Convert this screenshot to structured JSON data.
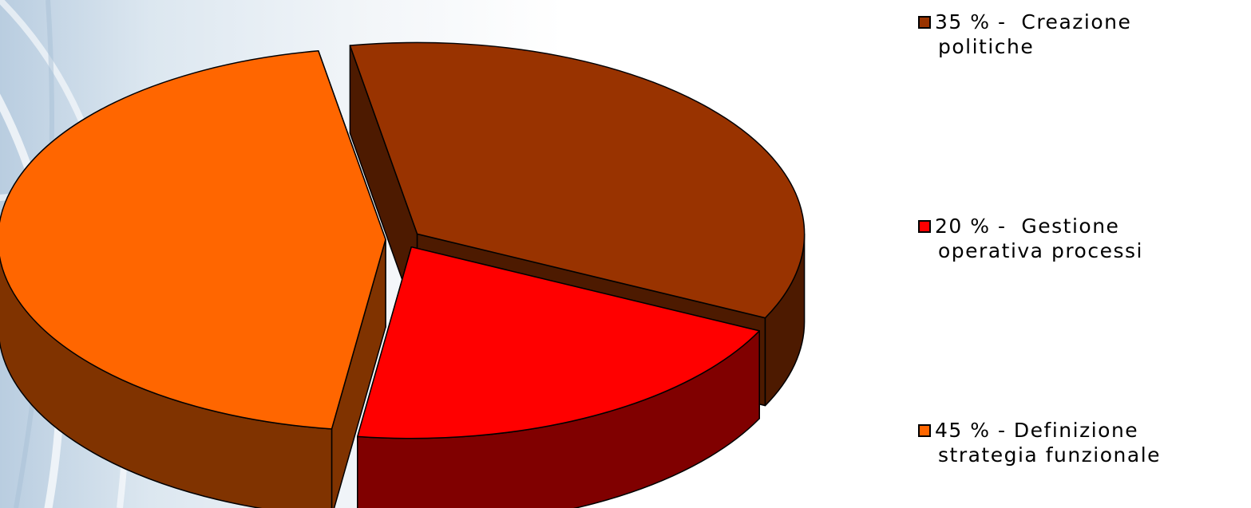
{
  "chart_data": {
    "type": "pie",
    "three_d": true,
    "exploded": true,
    "legend_position": "right",
    "slices": [
      {
        "label": "35 % -  Creazione politiche",
        "value": 35,
        "color": "#993300",
        "side_color": "#4d1a00"
      },
      {
        "label": "20 % -  Gestione operativa processi",
        "value": 20,
        "color": "#ff0000",
        "side_color": "#800000"
      },
      {
        "label": "45 % - Definizione strategia funzionale",
        "value": 45,
        "color": "#ff6600",
        "side_color": "#803300"
      }
    ]
  },
  "legend": [
    {
      "line1": "35 % -  Creazione",
      "line2": "politiche",
      "color": "#993300"
    },
    {
      "line1": "20 % -  Gestione",
      "line2": "operativa processi",
      "color": "#ff0000"
    },
    {
      "line1": "45 % - Definizione",
      "line2": "strategia funzionale",
      "color": "#ff6600"
    }
  ]
}
